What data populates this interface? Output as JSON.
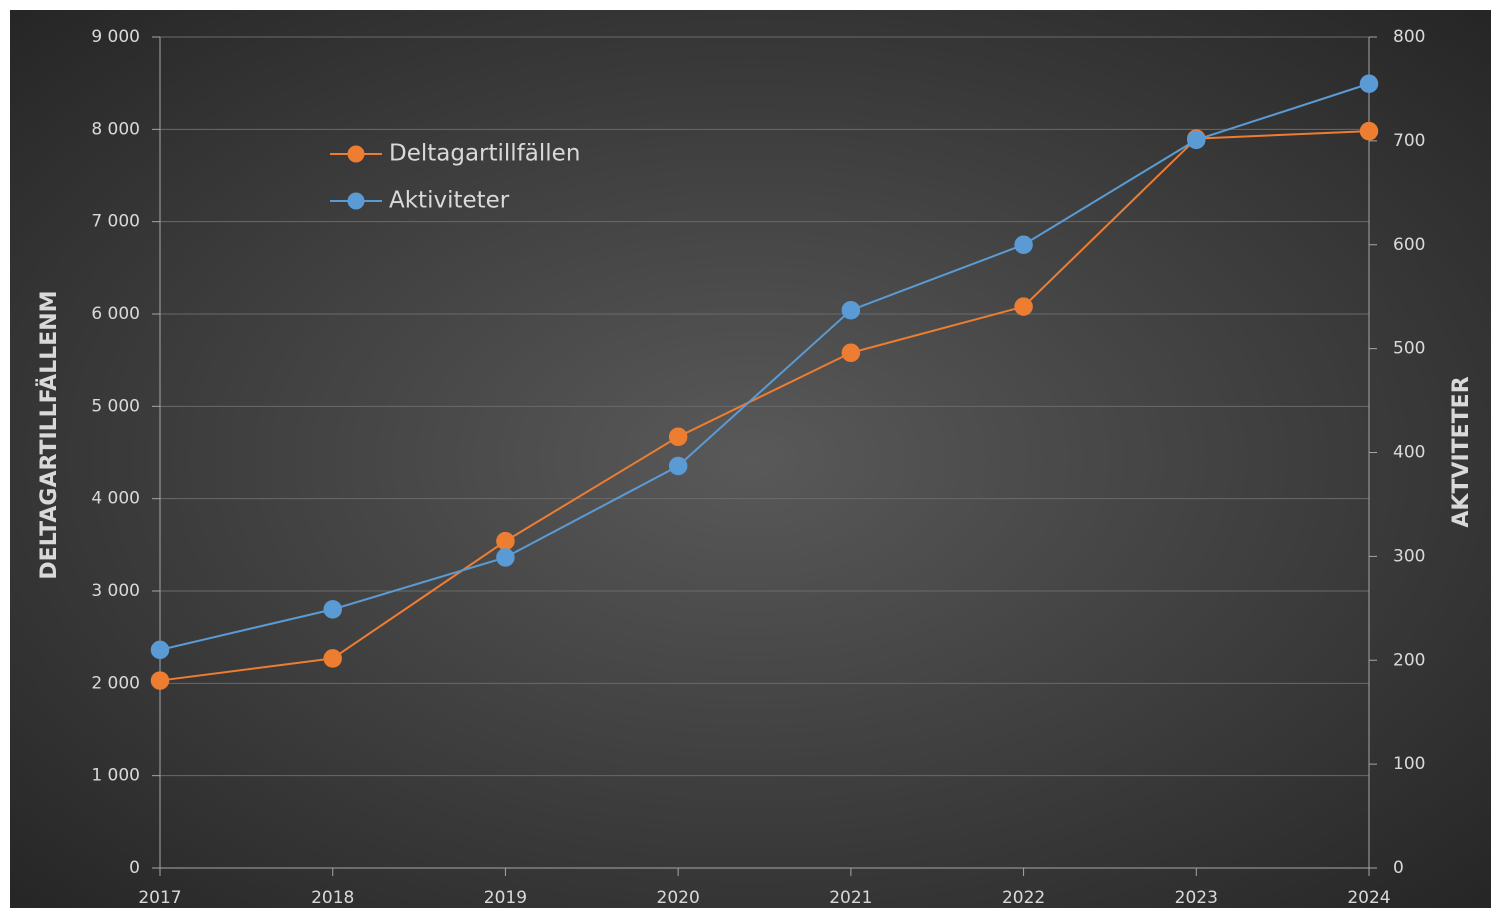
{
  "chart_data": {
    "type": "line",
    "x": [
      2017,
      2018,
      2019,
      2020,
      2021,
      2022,
      2023,
      2024
    ],
    "xlim": [
      2017,
      2024
    ],
    "xticks": [
      2017,
      2018,
      2019,
      2020,
      2021,
      2022,
      2023,
      2024
    ],
    "ylim": [
      0,
      9000
    ],
    "yticks": [
      0,
      {
        "value": 1000,
        "label": "1 000"
      },
      {
        "value": 2000,
        "label": "2 000"
      },
      {
        "value": 3000,
        "label": "3 000"
      },
      {
        "value": 4000,
        "label": "4 000"
      },
      {
        "value": 5000,
        "label": "5 000"
      },
      {
        "value": 6000,
        "label": "6 000"
      },
      {
        "value": 7000,
        "label": "7 000"
      },
      {
        "value": 8000,
        "label": "8 000"
      },
      {
        "value": 9000,
        "label": "9 000"
      }
    ],
    "y2lim": [
      0,
      800
    ],
    "y2ticks": [
      0,
      100,
      200,
      300,
      400,
      500,
      600,
      700,
      800
    ],
    "ylabel": "DELTAGARTILLFÄLLENM",
    "y2label": "AKTVITETER",
    "grid": true,
    "series": [
      {
        "name": "Deltagartillfällen",
        "color": "#ed7d31",
        "values": [
          2030,
          2270,
          3540,
          4670,
          5580,
          6080,
          7900,
          7980
        ]
      },
      {
        "name": "Aktiviteter",
        "color": "#5b9bd5",
        "axis": "y2",
        "values": [
          210,
          249,
          299,
          387,
          537,
          600,
          701,
          755
        ]
      }
    ]
  }
}
